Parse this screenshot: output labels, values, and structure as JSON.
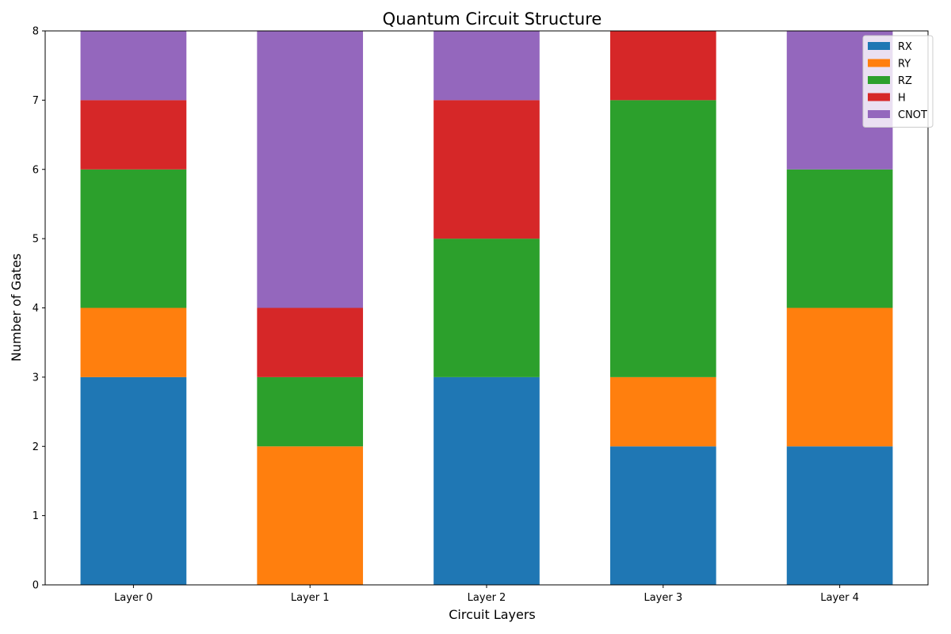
{
  "chart_data": {
    "type": "bar",
    "stacked": true,
    "title": "Quantum Circuit Structure",
    "xlabel": "Circuit Layers",
    "ylabel": "Number of Gates",
    "categories": [
      "Layer 0",
      "Layer 1",
      "Layer 2",
      "Layer 3",
      "Layer 4"
    ],
    "ylim": [
      0,
      8
    ],
    "yticks": [
      0,
      1,
      2,
      3,
      4,
      5,
      6,
      7,
      8
    ],
    "grid": false,
    "legend_position": "top-right",
    "series": [
      {
        "name": "RX",
        "color": "#1f77b4",
        "values": [
          3,
          0,
          3,
          2,
          2
        ]
      },
      {
        "name": "RY",
        "color": "#ff7f0e",
        "values": [
          1,
          2,
          0,
          1,
          2
        ]
      },
      {
        "name": "RZ",
        "color": "#2ca02c",
        "values": [
          2,
          1,
          2,
          4,
          2
        ]
      },
      {
        "name": "H",
        "color": "#d62728",
        "values": [
          1,
          1,
          2,
          1,
          0
        ]
      },
      {
        "name": "CNOT",
        "color": "#9467bd",
        "values": [
          1,
          4,
          1,
          0,
          2
        ]
      }
    ]
  }
}
